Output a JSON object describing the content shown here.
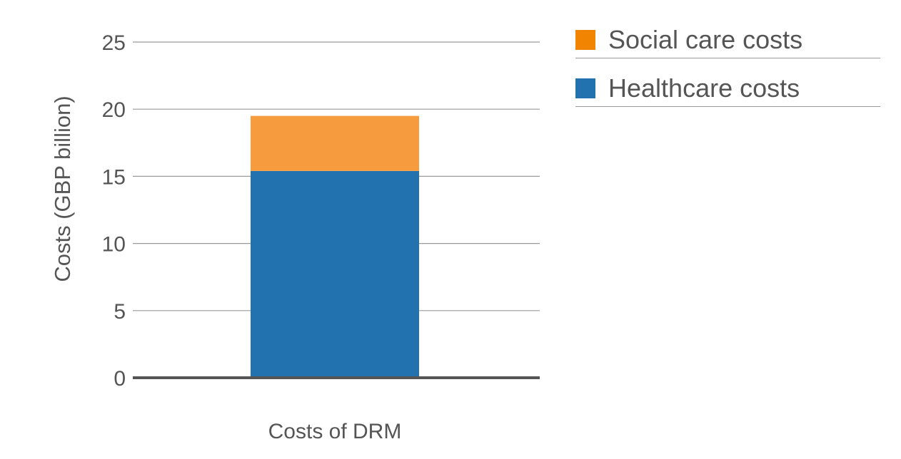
{
  "chart_data": {
    "type": "bar",
    "stacked": true,
    "categories": [
      "Costs of DRM"
    ],
    "series": [
      {
        "name": "Healthcare costs",
        "values": [
          15.4
        ],
        "color": "#2272b0",
        "legend_color": "#2272b0"
      },
      {
        "name": "Social care costs",
        "values": [
          4.1
        ],
        "color": "#f79b3f",
        "legend_color": "#f18400"
      }
    ],
    "ylabel": "Costs (GBP billion)",
    "xlabel": "",
    "ylim": [
      0,
      25
    ],
    "yticks": [
      0,
      5,
      10,
      15,
      20,
      25
    ],
    "grid": true,
    "legend_position": "top-right"
  }
}
